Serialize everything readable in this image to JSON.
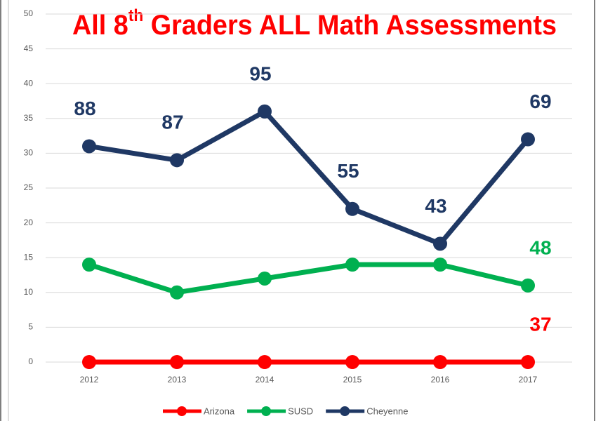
{
  "chart_data": {
    "type": "line",
    "title": [
      "All 8",
      "th",
      " Graders ALL Math Assessments"
    ],
    "title_color": "#ff0000",
    "categories": [
      "2012",
      "2013",
      "2014",
      "2015",
      "2016",
      "2017"
    ],
    "series": [
      {
        "name": "Arizona",
        "color": "#ff0000",
        "values": [
          0,
          0,
          0,
          0,
          0,
          0
        ],
        "annotations": [
          null,
          null,
          null,
          null,
          null,
          "37"
        ]
      },
      {
        "name": "SUSD",
        "color": "#00b050",
        "values": [
          14,
          10,
          12,
          14,
          14,
          11
        ],
        "annotations": [
          null,
          null,
          null,
          null,
          null,
          "48"
        ]
      },
      {
        "name": "Cheyenne",
        "color": "#1f3864",
        "values": [
          31,
          29,
          36,
          22,
          17,
          32
        ],
        "annotations": [
          "88",
          "87",
          "95",
          "55",
          "43",
          "69"
        ]
      }
    ],
    "ylim": [
      0,
      50
    ],
    "yticks": [
      0,
      5,
      10,
      15,
      20,
      25,
      30,
      35,
      40,
      45,
      50
    ],
    "grid": true,
    "legend": "bottom"
  }
}
